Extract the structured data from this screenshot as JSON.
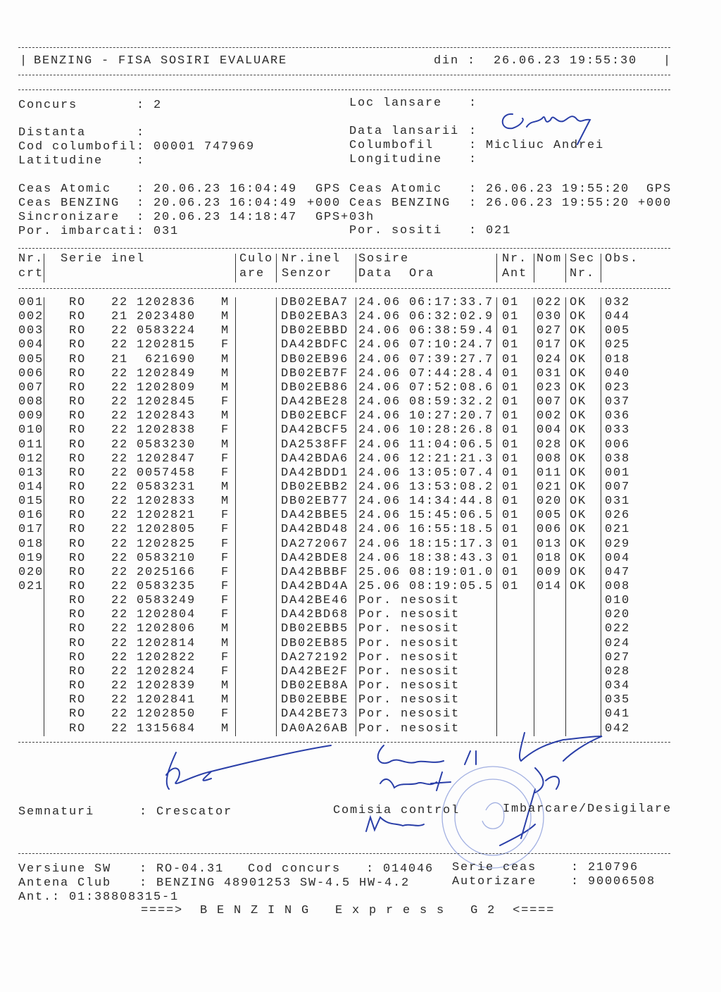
{
  "header": {
    "title": "BENZING - FISA SOSIRI EVALUARE",
    "date_label": "din :",
    "date_value": "26.06.23 19:55:30"
  },
  "info_left": [
    {
      "label": "Concurs",
      "value": ": 2"
    },
    {
      "label": "Distanta",
      "value": ":"
    },
    {
      "label": "Cod columbofil",
      "value": ": 00001 747969"
    },
    {
      "label": "Latitudine",
      "value": ":"
    }
  ],
  "info_right": [
    {
      "label": "Loc lansare",
      "value": ":"
    },
    {
      "label": "Data lansarii",
      "value": ":"
    },
    {
      "label": "Columbofil",
      "value": ": Micliuc Andrei"
    },
    {
      "label": "Longitudine",
      "value": ":"
    }
  ],
  "clocks_left": [
    {
      "label": "Ceas Atomic",
      "value": ": 20.06.23 16:04:49",
      "suffix": "GPS"
    },
    {
      "label": "Ceas BENZING",
      "value": ": 20.06.23 16:04:49",
      "suffix": "+000"
    },
    {
      "label": "Sincronizare",
      "value": ": 20.06.23 14:18:47",
      "suffix": "GPS+03h"
    },
    {
      "label": "Por. imbarcati",
      "value": ": 031",
      "suffix": ""
    }
  ],
  "clocks_right": [
    {
      "label": "Ceas Atomic",
      "value": ": 26.06.23 19:55:20",
      "suffix": "GPS"
    },
    {
      "label": "Ceas BENZING",
      "value": ": 26.06.23 19:55:20",
      "suffix": "+000"
    },
    {
      "label": "Por. sositi",
      "value": ": 021",
      "suffix": ""
    }
  ],
  "table": {
    "headers1": {
      "nr": "Nr.",
      "serie": "Serie inel",
      "culo": "Culo",
      "senzor": "Nr.inel",
      "sosire": "Sosire",
      "ant": "Nr.",
      "nom": "Nom",
      "sec": "Sec",
      "obs": "Obs."
    },
    "headers2": {
      "nr": "crt",
      "culo": "are",
      "senzor": "Senzor",
      "sosire": "Data  Ora",
      "ant": "Ant",
      "sec": "Nr."
    },
    "rows": [
      [
        "001",
        "RO",
        "22 1202836",
        "M",
        "DB02EBA7",
        "24.06 06:17:33.7",
        "01",
        "022",
        "OK",
        "032"
      ],
      [
        "002",
        "RO",
        "21 2023480",
        "M",
        "DB02EBA3",
        "24.06 06:32:02.9",
        "01",
        "030",
        "OK",
        "044"
      ],
      [
        "003",
        "RO",
        "22 0583224",
        "M",
        "DB02EBBD",
        "24.06 06:38:59.4",
        "01",
        "027",
        "OK",
        "005"
      ],
      [
        "004",
        "RO",
        "22 1202815",
        "F",
        "DA42BDFC",
        "24.06 07:10:24.7",
        "01",
        "017",
        "OK",
        "025"
      ],
      [
        "005",
        "RO",
        "21  621690",
        "M",
        "DB02EB96",
        "24.06 07:39:27.7",
        "01",
        "024",
        "OK",
        "018"
      ],
      [
        "006",
        "RO",
        "22 1202849",
        "M",
        "DB02EB7F",
        "24.06 07:44:28.4",
        "01",
        "031",
        "OK",
        "040"
      ],
      [
        "007",
        "RO",
        "22 1202809",
        "M",
        "DB02EB86",
        "24.06 07:52:08.6",
        "01",
        "023",
        "OK",
        "023"
      ],
      [
        "008",
        "RO",
        "22 1202845",
        "F",
        "DA42BE28",
        "24.06 08:59:32.2",
        "01",
        "007",
        "OK",
        "037"
      ],
      [
        "009",
        "RO",
        "22 1202843",
        "M",
        "DB02EBCF",
        "24.06 10:27:20.7",
        "01",
        "002",
        "OK",
        "036"
      ],
      [
        "010",
        "RO",
        "22 1202838",
        "F",
        "DA42BCF5",
        "24.06 10:28:26.8",
        "01",
        "004",
        "OK",
        "033"
      ],
      [
        "011",
        "RO",
        "22 0583230",
        "M",
        "DA2538FF",
        "24.06 11:04:06.5",
        "01",
        "028",
        "OK",
        "006"
      ],
      [
        "012",
        "RO",
        "22 1202847",
        "F",
        "DA42BDA6",
        "24.06 12:21:21.3",
        "01",
        "008",
        "OK",
        "038"
      ],
      [
        "013",
        "RO",
        "22 0057458",
        "F",
        "DA42BDD1",
        "24.06 13:05:07.4",
        "01",
        "011",
        "OK",
        "001"
      ],
      [
        "014",
        "RO",
        "22 0583231",
        "M",
        "DB02EBB2",
        "24.06 13:53:08.2",
        "01",
        "021",
        "OK",
        "007"
      ],
      [
        "015",
        "RO",
        "22 1202833",
        "M",
        "DB02EB77",
        "24.06 14:34:44.8",
        "01",
        "020",
        "OK",
        "031"
      ],
      [
        "016",
        "RO",
        "22 1202821",
        "F",
        "DA42BBE5",
        "24.06 15:45:06.5",
        "01",
        "005",
        "OK",
        "026"
      ],
      [
        "017",
        "RO",
        "22 1202805",
        "F",
        "DA42BD48",
        "24.06 16:55:18.5",
        "01",
        "006",
        "OK",
        "021"
      ],
      [
        "018",
        "RO",
        "22 1202825",
        "F",
        "DA272067",
        "24.06 18:15:17.3",
        "01",
        "013",
        "OK",
        "029"
      ],
      [
        "019",
        "RO",
        "22 0583210",
        "F",
        "DA42BDE8",
        "24.06 18:38:43.3",
        "01",
        "018",
        "OK",
        "004"
      ],
      [
        "020",
        "RO",
        "22 2025166",
        "F",
        "DA42BBBF",
        "25.06 08:19:01.0",
        "01",
        "009",
        "OK",
        "047"
      ],
      [
        "021",
        "RO",
        "22 0583235",
        "F",
        "DA42BD4A",
        "25.06 08:19:05.5",
        "01",
        "014",
        "OK",
        "008"
      ],
      [
        "",
        "RO",
        "22 0583249",
        "F",
        "DA42BE46",
        "Por. nesosit",
        "",
        "",
        "",
        "010"
      ],
      [
        "",
        "RO",
        "22 1202804",
        "F",
        "DA42BD68",
        "Por. nesosit",
        "",
        "",
        "",
        "020"
      ],
      [
        "",
        "RO",
        "22 1202806",
        "M",
        "DB02EBB5",
        "Por. nesosit",
        "",
        "",
        "",
        "022"
      ],
      [
        "",
        "RO",
        "22 1202814",
        "M",
        "DB02EB85",
        "Por. nesosit",
        "",
        "",
        "",
        "024"
      ],
      [
        "",
        "RO",
        "22 1202822",
        "F",
        "DA272192",
        "Por. nesosit",
        "",
        "",
        "",
        "027"
      ],
      [
        "",
        "RO",
        "22 1202824",
        "F",
        "DA42BE2F",
        "Por. nesosit",
        "",
        "",
        "",
        "028"
      ],
      [
        "",
        "RO",
        "22 1202839",
        "M",
        "DB02EB8A",
        "Por. nesosit",
        "",
        "",
        "",
        "034"
      ],
      [
        "",
        "RO",
        "22 1202841",
        "M",
        "DB02EBBE",
        "Por. nesosit",
        "",
        "",
        "",
        "035"
      ],
      [
        "",
        "RO",
        "22 1202850",
        "F",
        "DA42BE73",
        "Por. nesosit",
        "",
        "",
        "",
        "041"
      ],
      [
        "",
        "RO",
        "22 1315684",
        "M",
        "DA0A26AB",
        "Por. nesosit",
        "",
        "",
        "",
        "042"
      ]
    ]
  },
  "signatures": {
    "label": "Semnaturi",
    "breeder": ": Crescator",
    "commission": "Comisia control",
    "boarding": "Imbarcare/Desigilare",
    "ink_color": "#2a3fa8"
  },
  "footer": {
    "sw_label": "Versiune SW",
    "sw_value": ": RO-04.31",
    "cod_label": "Cod concurs",
    "cod_value": ": 014046",
    "serie_label": "Serie ceas",
    "serie_value": ": 210796",
    "antena_label": "Antena Club",
    "antena_value": ": BENZING 48901253 SW-4.5 HW-4.2",
    "aut_label": "Autorizare",
    "aut_value": ": 90006508",
    "ant_line": "Ant.: 01:38808315-1",
    "brand_line": "====>  B E N Z I N G   E x p r e s s   G 2  <===="
  }
}
